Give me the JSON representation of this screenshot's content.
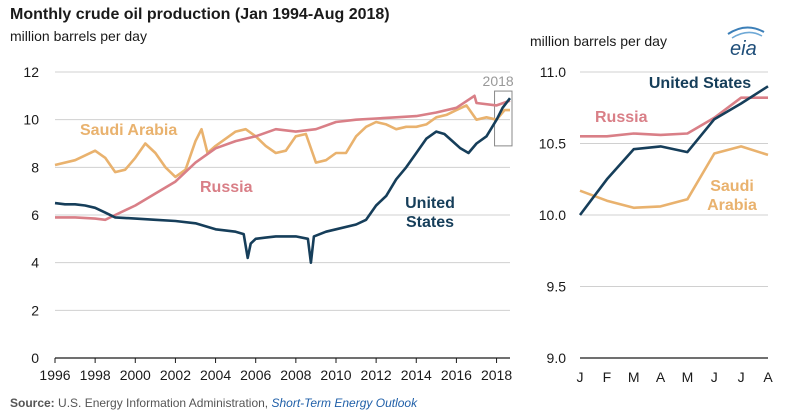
{
  "header": {
    "title": "Monthly crude oil production (Jan 1994-Aug 2018)",
    "subtitle_left": "million barrels per day",
    "subtitle_right": "million barrels per day"
  },
  "logo": {
    "text": "eia",
    "icon": "eia-logo"
  },
  "source": {
    "label": "Source:",
    "text": "U.S. Energy Information Administration,",
    "link": "Short-Term Energy Outlook"
  },
  "colors": {
    "united_states": "#163e5a",
    "russia": "#d97f87",
    "saudi_arabia": "#e9b26e",
    "grid": "#d0d0d0",
    "highlight_box": "#888888"
  },
  "chart_data": [
    {
      "type": "line",
      "title": "Monthly crude oil production (Jan 1994-Aug 2018)",
      "ylabel": "million barrels per day",
      "xlim": [
        1996,
        2018.67
      ],
      "ylim": [
        0,
        12
      ],
      "yticks": [
        0,
        2,
        4,
        6,
        8,
        10,
        12
      ],
      "xticks": [
        "1996",
        "1998",
        "2000",
        "2002",
        "2004",
        "2006",
        "2008",
        "2010",
        "2012",
        "2014",
        "2016",
        "2018"
      ],
      "grid": true,
      "highlight_box": {
        "label": "2018",
        "x_from": 2018,
        "x_to": 2018.67,
        "y_from": 8.9,
        "y_to": 11.2
      },
      "series": [
        {
          "name": "United States",
          "label_lines": [
            "United",
            "States"
          ],
          "color": "#163e5a",
          "x": [
            1996,
            1996.5,
            1997,
            1997.5,
            1998,
            1998.5,
            1999,
            2000,
            2001,
            2002,
            2003,
            2004,
            2005,
            2005.4,
            2005.6,
            2005.75,
            2006,
            2006.5,
            2007,
            2008,
            2008.6,
            2008.75,
            2008.9,
            2009.5,
            2010,
            2011,
            2011.5,
            2012,
            2012.5,
            2013,
            2013.5,
            2014,
            2014.5,
            2015,
            2015.4,
            2015.8,
            2016.2,
            2016.6,
            2017,
            2017.5,
            2018,
            2018.3,
            2018.67
          ],
          "values": [
            6.5,
            6.45,
            6.45,
            6.4,
            6.3,
            6.1,
            5.9,
            5.85,
            5.8,
            5.75,
            5.65,
            5.4,
            5.3,
            5.2,
            4.2,
            4.8,
            5.0,
            5.05,
            5.1,
            5.1,
            5.0,
            4.0,
            5.1,
            5.3,
            5.4,
            5.6,
            5.8,
            6.4,
            6.8,
            7.5,
            8.0,
            8.6,
            9.2,
            9.5,
            9.4,
            9.1,
            8.8,
            8.6,
            9.0,
            9.3,
            10.0,
            10.5,
            10.9
          ]
        },
        {
          "name": "Russia",
          "label_lines": [
            "Russia"
          ],
          "color": "#d97f87",
          "x": [
            1996,
            1997,
            1998,
            1998.5,
            1999,
            2000,
            2001,
            2002,
            2003,
            2004,
            2005,
            2006,
            2007,
            2008,
            2009,
            2010,
            2011,
            2012,
            2013,
            2014,
            2015,
            2016,
            2016.9,
            2017,
            2018,
            2018.67
          ],
          "values": [
            5.9,
            5.9,
            5.85,
            5.8,
            6.0,
            6.4,
            6.9,
            7.4,
            8.2,
            8.8,
            9.1,
            9.3,
            9.6,
            9.5,
            9.6,
            9.9,
            10.0,
            10.05,
            10.1,
            10.15,
            10.3,
            10.5,
            11.0,
            10.7,
            10.6,
            10.8
          ]
        },
        {
          "name": "Saudi Arabia",
          "label_lines": [
            "Saudi Arabia"
          ],
          "color": "#e9b26e",
          "x": [
            1996,
            1997,
            1997.5,
            1998,
            1998.5,
            1999,
            1999.5,
            2000,
            2000.5,
            2001,
            2001.5,
            2002,
            2002.5,
            2003,
            2003.3,
            2003.6,
            2004,
            2005,
            2005.5,
            2006,
            2006.5,
            2007,
            2007.5,
            2008,
            2008.5,
            2009,
            2009.5,
            2010,
            2010.5,
            2011,
            2011.5,
            2012,
            2012.5,
            2013,
            2013.5,
            2014,
            2014.5,
            2015,
            2015.5,
            2016,
            2016.5,
            2017,
            2017.5,
            2018,
            2018.4,
            2018.67
          ],
          "values": [
            8.1,
            8.3,
            8.5,
            8.7,
            8.4,
            7.8,
            7.9,
            8.4,
            9.0,
            8.6,
            8.0,
            7.6,
            7.9,
            9.1,
            9.6,
            8.6,
            8.9,
            9.5,
            9.6,
            9.3,
            8.9,
            8.6,
            8.7,
            9.3,
            9.4,
            8.2,
            8.3,
            8.6,
            8.6,
            9.3,
            9.7,
            9.9,
            9.8,
            9.6,
            9.7,
            9.7,
            9.8,
            10.1,
            10.2,
            10.4,
            10.6,
            10.0,
            10.1,
            10.0,
            10.4,
            10.4
          ]
        }
      ]
    },
    {
      "type": "line",
      "title": "",
      "ylabel": "million barrels per day",
      "categories": [
        "J",
        "F",
        "M",
        "A",
        "M",
        "J",
        "J",
        "A"
      ],
      "ylim": [
        9.0,
        11.0
      ],
      "yticks": [
        "9.0",
        "9.5",
        "10.0",
        "10.5",
        "11.0"
      ],
      "grid": true,
      "series": [
        {
          "name": "United States",
          "label_lines": [
            "United States"
          ],
          "color": "#163e5a",
          "values": [
            10.0,
            10.25,
            10.46,
            10.48,
            10.44,
            10.67,
            10.78,
            10.9
          ]
        },
        {
          "name": "Russia",
          "label_lines": [
            "Russia"
          ],
          "color": "#d97f87",
          "values": [
            10.55,
            10.55,
            10.57,
            10.56,
            10.57,
            10.68,
            10.82,
            10.82
          ]
        },
        {
          "name": "Saudi Arabia",
          "label_lines": [
            "Saudi",
            "Arabia"
          ],
          "color": "#e9b26e",
          "values": [
            10.17,
            10.1,
            10.05,
            10.06,
            10.11,
            10.43,
            10.48,
            10.42
          ]
        }
      ]
    }
  ]
}
